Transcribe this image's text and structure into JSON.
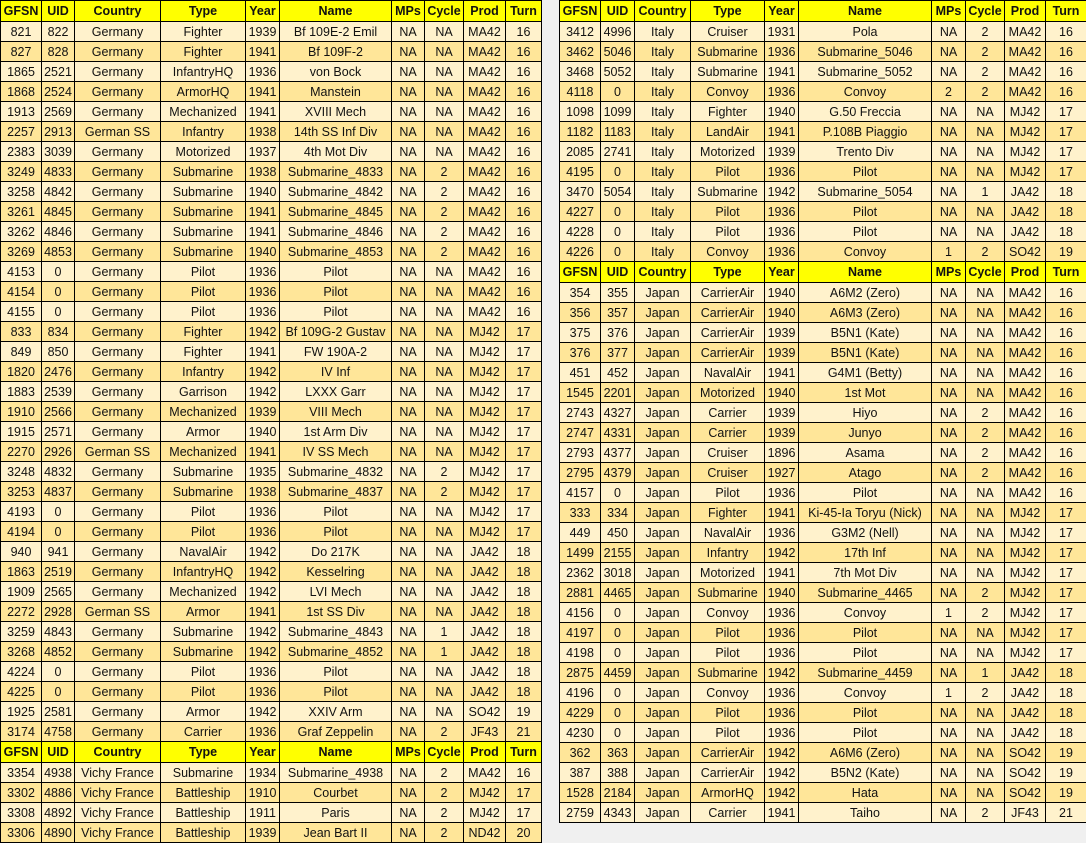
{
  "headers": [
    "GFSN",
    "UID",
    "Country",
    "Type",
    "Year",
    "Name",
    "MPs",
    "Cycle",
    "Prod",
    "Turn"
  ],
  "colors": {
    "header": "#ffff00",
    "row_light": "#fff2cc",
    "row_dark": "#ffe699",
    "border": "#000000"
  },
  "left": {
    "sections": [
      {
        "rows": [
          [
            "821",
            "822",
            "Germany",
            "Fighter",
            "1939",
            "Bf 109E-2 Emil",
            "NA",
            "NA",
            "MA42",
            "16"
          ],
          [
            "827",
            "828",
            "Germany",
            "Fighter",
            "1941",
            "Bf 109F-2",
            "NA",
            "NA",
            "MA42",
            "16"
          ],
          [
            "1865",
            "2521",
            "Germany",
            "InfantryHQ",
            "1936",
            "von Bock",
            "NA",
            "NA",
            "MA42",
            "16"
          ],
          [
            "1868",
            "2524",
            "Germany",
            "ArmorHQ",
            "1941",
            "Manstein",
            "NA",
            "NA",
            "MA42",
            "16"
          ],
          [
            "1913",
            "2569",
            "Germany",
            "Mechanized",
            "1941",
            "XVIII Mech",
            "NA",
            "NA",
            "MA42",
            "16"
          ],
          [
            "2257",
            "2913",
            "German SS",
            "Infantry",
            "1938",
            "14th SS Inf Div",
            "NA",
            "NA",
            "MA42",
            "16"
          ],
          [
            "2383",
            "3039",
            "Germany",
            "Motorized",
            "1937",
            "4th Mot Div",
            "NA",
            "NA",
            "MA42",
            "16"
          ],
          [
            "3249",
            "4833",
            "Germany",
            "Submarine",
            "1938",
            "Submarine_4833",
            "NA",
            "2",
            "MA42",
            "16"
          ],
          [
            "3258",
            "4842",
            "Germany",
            "Submarine",
            "1940",
            "Submarine_4842",
            "NA",
            "2",
            "MA42",
            "16"
          ],
          [
            "3261",
            "4845",
            "Germany",
            "Submarine",
            "1941",
            "Submarine_4845",
            "NA",
            "2",
            "MA42",
            "16"
          ],
          [
            "3262",
            "4846",
            "Germany",
            "Submarine",
            "1941",
            "Submarine_4846",
            "NA",
            "2",
            "MA42",
            "16"
          ],
          [
            "3269",
            "4853",
            "Germany",
            "Submarine",
            "1940",
            "Submarine_4853",
            "NA",
            "2",
            "MA42",
            "16"
          ],
          [
            "4153",
            "0",
            "Germany",
            "Pilot",
            "1936",
            "Pilot",
            "NA",
            "NA",
            "MA42",
            "16"
          ],
          [
            "4154",
            "0",
            "Germany",
            "Pilot",
            "1936",
            "Pilot",
            "NA",
            "NA",
            "MA42",
            "16"
          ],
          [
            "4155",
            "0",
            "Germany",
            "Pilot",
            "1936",
            "Pilot",
            "NA",
            "NA",
            "MA42",
            "16"
          ],
          [
            "833",
            "834",
            "Germany",
            "Fighter",
            "1942",
            "Bf 109G-2 Gustav",
            "NA",
            "NA",
            "MJ42",
            "17"
          ],
          [
            "849",
            "850",
            "Germany",
            "Fighter",
            "1941",
            "FW 190A-2",
            "NA",
            "NA",
            "MJ42",
            "17"
          ],
          [
            "1820",
            "2476",
            "Germany",
            "Infantry",
            "1942",
            "IV Inf",
            "NA",
            "NA",
            "MJ42",
            "17"
          ],
          [
            "1883",
            "2539",
            "Germany",
            "Garrison",
            "1942",
            "LXXX Garr",
            "NA",
            "NA",
            "MJ42",
            "17"
          ],
          [
            "1910",
            "2566",
            "Germany",
            "Mechanized",
            "1939",
            "VIII Mech",
            "NA",
            "NA",
            "MJ42",
            "17"
          ],
          [
            "1915",
            "2571",
            "Germany",
            "Armor",
            "1940",
            "1st Arm Div",
            "NA",
            "NA",
            "MJ42",
            "17"
          ],
          [
            "2270",
            "2926",
            "German SS",
            "Mechanized",
            "1941",
            "IV SS Mech",
            "NA",
            "NA",
            "MJ42",
            "17"
          ],
          [
            "3248",
            "4832",
            "Germany",
            "Submarine",
            "1935",
            "Submarine_4832",
            "NA",
            "2",
            "MJ42",
            "17"
          ],
          [
            "3253",
            "4837",
            "Germany",
            "Submarine",
            "1938",
            "Submarine_4837",
            "NA",
            "2",
            "MJ42",
            "17"
          ],
          [
            "4193",
            "0",
            "Germany",
            "Pilot",
            "1936",
            "Pilot",
            "NA",
            "NA",
            "MJ42",
            "17"
          ],
          [
            "4194",
            "0",
            "Germany",
            "Pilot",
            "1936",
            "Pilot",
            "NA",
            "NA",
            "MJ42",
            "17"
          ],
          [
            "940",
            "941",
            "Germany",
            "NavalAir",
            "1942",
            "Do 217K",
            "NA",
            "NA",
            "JA42",
            "18"
          ],
          [
            "1863",
            "2519",
            "Germany",
            "InfantryHQ",
            "1942",
            "Kesselring",
            "NA",
            "NA",
            "JA42",
            "18"
          ],
          [
            "1909",
            "2565",
            "Germany",
            "Mechanized",
            "1942",
            "LVI Mech",
            "NA",
            "NA",
            "JA42",
            "18"
          ],
          [
            "2272",
            "2928",
            "German SS",
            "Armor",
            "1941",
            "1st SS Div",
            "NA",
            "NA",
            "JA42",
            "18"
          ],
          [
            "3259",
            "4843",
            "Germany",
            "Submarine",
            "1942",
            "Submarine_4843",
            "NA",
            "1",
            "JA42",
            "18"
          ],
          [
            "3268",
            "4852",
            "Germany",
            "Submarine",
            "1942",
            "Submarine_4852",
            "NA",
            "1",
            "JA42",
            "18"
          ],
          [
            "4224",
            "0",
            "Germany",
            "Pilot",
            "1936",
            "Pilot",
            "NA",
            "NA",
            "JA42",
            "18"
          ],
          [
            "4225",
            "0",
            "Germany",
            "Pilot",
            "1936",
            "Pilot",
            "NA",
            "NA",
            "JA42",
            "18"
          ],
          [
            "1925",
            "2581",
            "Germany",
            "Armor",
            "1942",
            "XXIV Arm",
            "NA",
            "NA",
            "SO42",
            "19"
          ],
          [
            "3174",
            "4758",
            "Germany",
            "Carrier",
            "1936",
            "Graf Zeppelin",
            "NA",
            "2",
            "JF43",
            "21"
          ]
        ]
      },
      {
        "rows": [
          [
            "3354",
            "4938",
            "Vichy France",
            "Submarine",
            "1934",
            "Submarine_4938",
            "NA",
            "2",
            "MA42",
            "16"
          ],
          [
            "3302",
            "4886",
            "Vichy France",
            "Battleship",
            "1910",
            "Courbet",
            "NA",
            "2",
            "MJ42",
            "17"
          ],
          [
            "3308",
            "4892",
            "Vichy France",
            "Battleship",
            "1911",
            "Paris",
            "NA",
            "2",
            "MJ42",
            "17"
          ],
          [
            "3306",
            "4890",
            "Vichy France",
            "Battleship",
            "1939",
            "Jean Bart II",
            "NA",
            "2",
            "ND42",
            "20"
          ]
        ]
      }
    ]
  },
  "right": {
    "sections": [
      {
        "rows": [
          [
            "3412",
            "4996",
            "Italy",
            "Cruiser",
            "1931",
            "Pola",
            "NA",
            "2",
            "MA42",
            "16"
          ],
          [
            "3462",
            "5046",
            "Italy",
            "Submarine",
            "1936",
            "Submarine_5046",
            "NA",
            "2",
            "MA42",
            "16"
          ],
          [
            "3468",
            "5052",
            "Italy",
            "Submarine",
            "1941",
            "Submarine_5052",
            "NA",
            "2",
            "MA42",
            "16"
          ],
          [
            "4118",
            "0",
            "Italy",
            "Convoy",
            "1936",
            "Convoy",
            "2",
            "2",
            "MA42",
            "16"
          ],
          [
            "1098",
            "1099",
            "Italy",
            "Fighter",
            "1940",
            "G.50 Freccia",
            "NA",
            "NA",
            "MJ42",
            "17"
          ],
          [
            "1182",
            "1183",
            "Italy",
            "LandAir",
            "1941",
            "P.108B Piaggio",
            "NA",
            "NA",
            "MJ42",
            "17"
          ],
          [
            "2085",
            "2741",
            "Italy",
            "Motorized",
            "1939",
            "Trento Div",
            "NA",
            "NA",
            "MJ42",
            "17"
          ],
          [
            "4195",
            "0",
            "Italy",
            "Pilot",
            "1936",
            "Pilot",
            "NA",
            "NA",
            "MJ42",
            "17"
          ],
          [
            "3470",
            "5054",
            "Italy",
            "Submarine",
            "1942",
            "Submarine_5054",
            "NA",
            "1",
            "JA42",
            "18"
          ],
          [
            "4227",
            "0",
            "Italy",
            "Pilot",
            "1936",
            "Pilot",
            "NA",
            "NA",
            "JA42",
            "18"
          ],
          [
            "4228",
            "0",
            "Italy",
            "Pilot",
            "1936",
            "Pilot",
            "NA",
            "NA",
            "JA42",
            "18"
          ],
          [
            "4226",
            "0",
            "Italy",
            "Convoy",
            "1936",
            "Convoy",
            "1",
            "2",
            "SO42",
            "19"
          ]
        ]
      },
      {
        "rows": [
          [
            "354",
            "355",
            "Japan",
            "CarrierAir",
            "1940",
            "A6M2 (Zero)",
            "NA",
            "NA",
            "MA42",
            "16"
          ],
          [
            "356",
            "357",
            "Japan",
            "CarrierAir",
            "1940",
            "A6M3 (Zero)",
            "NA",
            "NA",
            "MA42",
            "16"
          ],
          [
            "375",
            "376",
            "Japan",
            "CarrierAir",
            "1939",
            "B5N1 (Kate)",
            "NA",
            "NA",
            "MA42",
            "16"
          ],
          [
            "376",
            "377",
            "Japan",
            "CarrierAir",
            "1939",
            "B5N1 (Kate)",
            "NA",
            "NA",
            "MA42",
            "16"
          ],
          [
            "451",
            "452",
            "Japan",
            "NavalAir",
            "1941",
            "G4M1 (Betty)",
            "NA",
            "NA",
            "MA42",
            "16"
          ],
          [
            "1545",
            "2201",
            "Japan",
            "Motorized",
            "1940",
            "1st Mot",
            "NA",
            "NA",
            "MA42",
            "16"
          ],
          [
            "2743",
            "4327",
            "Japan",
            "Carrier",
            "1939",
            "Hiyo",
            "NA",
            "2",
            "MA42",
            "16"
          ],
          [
            "2747",
            "4331",
            "Japan",
            "Carrier",
            "1939",
            "Junyo",
            "NA",
            "2",
            "MA42",
            "16"
          ],
          [
            "2793",
            "4377",
            "Japan",
            "Cruiser",
            "1896",
            "Asama",
            "NA",
            "2",
            "MA42",
            "16"
          ],
          [
            "2795",
            "4379",
            "Japan",
            "Cruiser",
            "1927",
            "Atago",
            "NA",
            "2",
            "MA42",
            "16"
          ],
          [
            "4157",
            "0",
            "Japan",
            "Pilot",
            "1936",
            "Pilot",
            "NA",
            "NA",
            "MA42",
            "16"
          ],
          [
            "333",
            "334",
            "Japan",
            "Fighter",
            "1941",
            "Ki-45-Ia Toryu (Nick)",
            "NA",
            "NA",
            "MJ42",
            "17"
          ],
          [
            "449",
            "450",
            "Japan",
            "NavalAir",
            "1936",
            "G3M2 (Nell)",
            "NA",
            "NA",
            "MJ42",
            "17"
          ],
          [
            "1499",
            "2155",
            "Japan",
            "Infantry",
            "1942",
            "17th Inf",
            "NA",
            "NA",
            "MJ42",
            "17"
          ],
          [
            "2362",
            "3018",
            "Japan",
            "Motorized",
            "1941",
            "7th Mot Div",
            "NA",
            "NA",
            "MJ42",
            "17"
          ],
          [
            "2881",
            "4465",
            "Japan",
            "Submarine",
            "1940",
            "Submarine_4465",
            "NA",
            "2",
            "MJ42",
            "17"
          ],
          [
            "4156",
            "0",
            "Japan",
            "Convoy",
            "1936",
            "Convoy",
            "1",
            "2",
            "MJ42",
            "17"
          ],
          [
            "4197",
            "0",
            "Japan",
            "Pilot",
            "1936",
            "Pilot",
            "NA",
            "NA",
            "MJ42",
            "17"
          ],
          [
            "4198",
            "0",
            "Japan",
            "Pilot",
            "1936",
            "Pilot",
            "NA",
            "NA",
            "MJ42",
            "17"
          ],
          [
            "2875",
            "4459",
            "Japan",
            "Submarine",
            "1942",
            "Submarine_4459",
            "NA",
            "1",
            "JA42",
            "18"
          ],
          [
            "4196",
            "0",
            "Japan",
            "Convoy",
            "1936",
            "Convoy",
            "1",
            "2",
            "JA42",
            "18"
          ],
          [
            "4229",
            "0",
            "Japan",
            "Pilot",
            "1936",
            "Pilot",
            "NA",
            "NA",
            "JA42",
            "18"
          ],
          [
            "4230",
            "0",
            "Japan",
            "Pilot",
            "1936",
            "Pilot",
            "NA",
            "NA",
            "JA42",
            "18"
          ],
          [
            "362",
            "363",
            "Japan",
            "CarrierAir",
            "1942",
            "A6M6 (Zero)",
            "NA",
            "NA",
            "SO42",
            "19"
          ],
          [
            "387",
            "388",
            "Japan",
            "CarrierAir",
            "1942",
            "B5N2 (Kate)",
            "NA",
            "NA",
            "SO42",
            "19"
          ],
          [
            "1528",
            "2184",
            "Japan",
            "ArmorHQ",
            "1942",
            "Hata",
            "NA",
            "NA",
            "SO42",
            "19"
          ],
          [
            "2759",
            "4343",
            "Japan",
            "Carrier",
            "1941",
            "Taiho",
            "NA",
            "2",
            "JF43",
            "21"
          ]
        ]
      }
    ]
  }
}
